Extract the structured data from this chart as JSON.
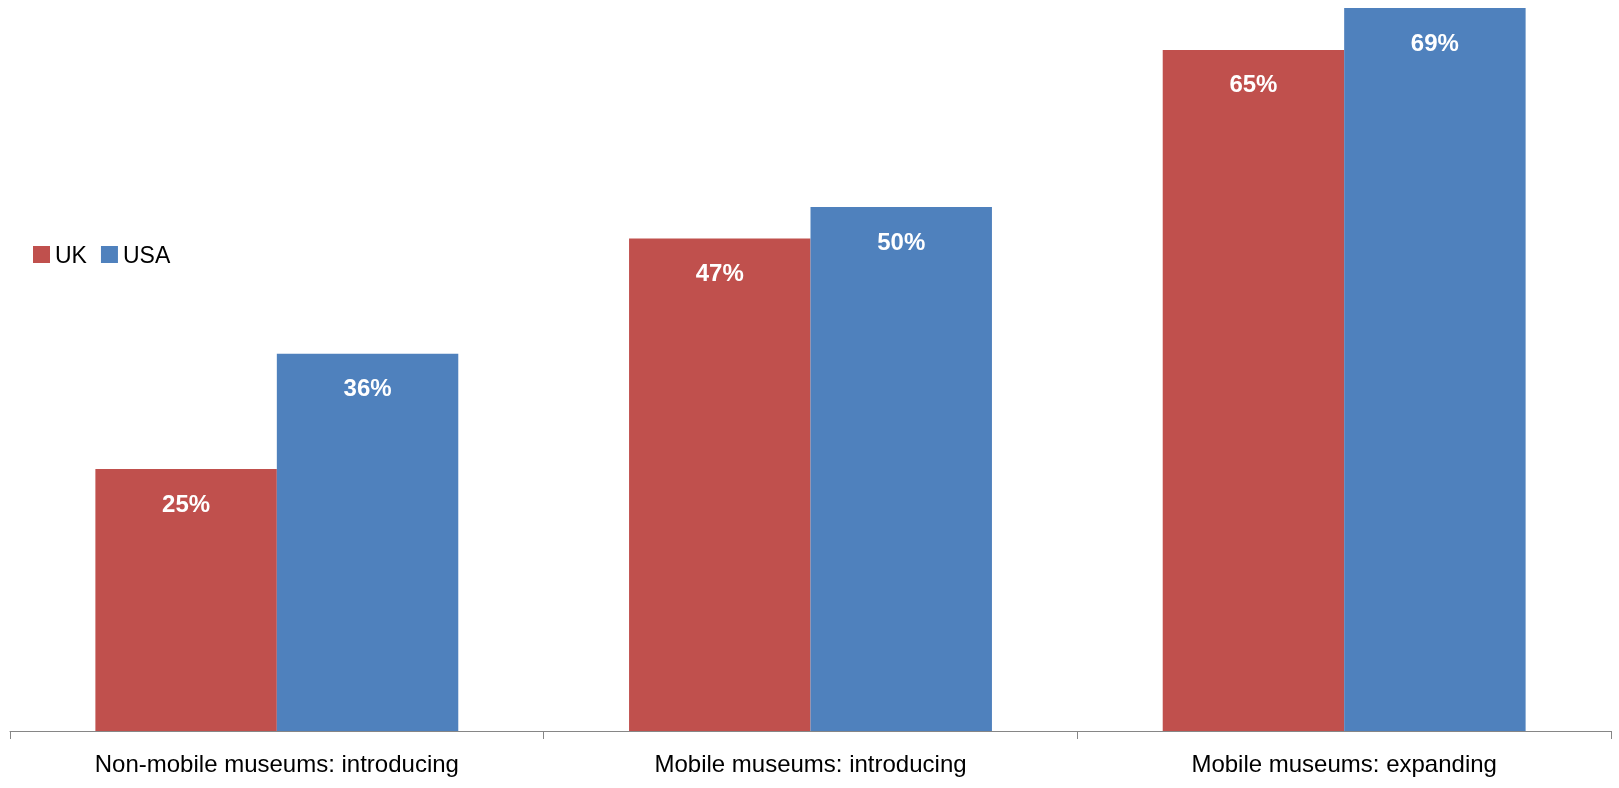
{
  "chart_data": {
    "type": "bar",
    "categories": [
      "Non-mobile museums: introducing",
      "Mobile museums: introducing",
      "Mobile museums: expanding"
    ],
    "series": [
      {
        "name": "UK",
        "color": "#c0504d",
        "values": [
          25,
          47,
          65
        ],
        "value_labels": [
          "25%",
          "47%",
          "65%"
        ]
      },
      {
        "name": "USA",
        "color": "#4f81bd",
        "values": [
          36,
          50,
          69
        ],
        "value_labels": [
          "36%",
          "50%",
          "69%"
        ]
      }
    ],
    "legend": "left"
  }
}
